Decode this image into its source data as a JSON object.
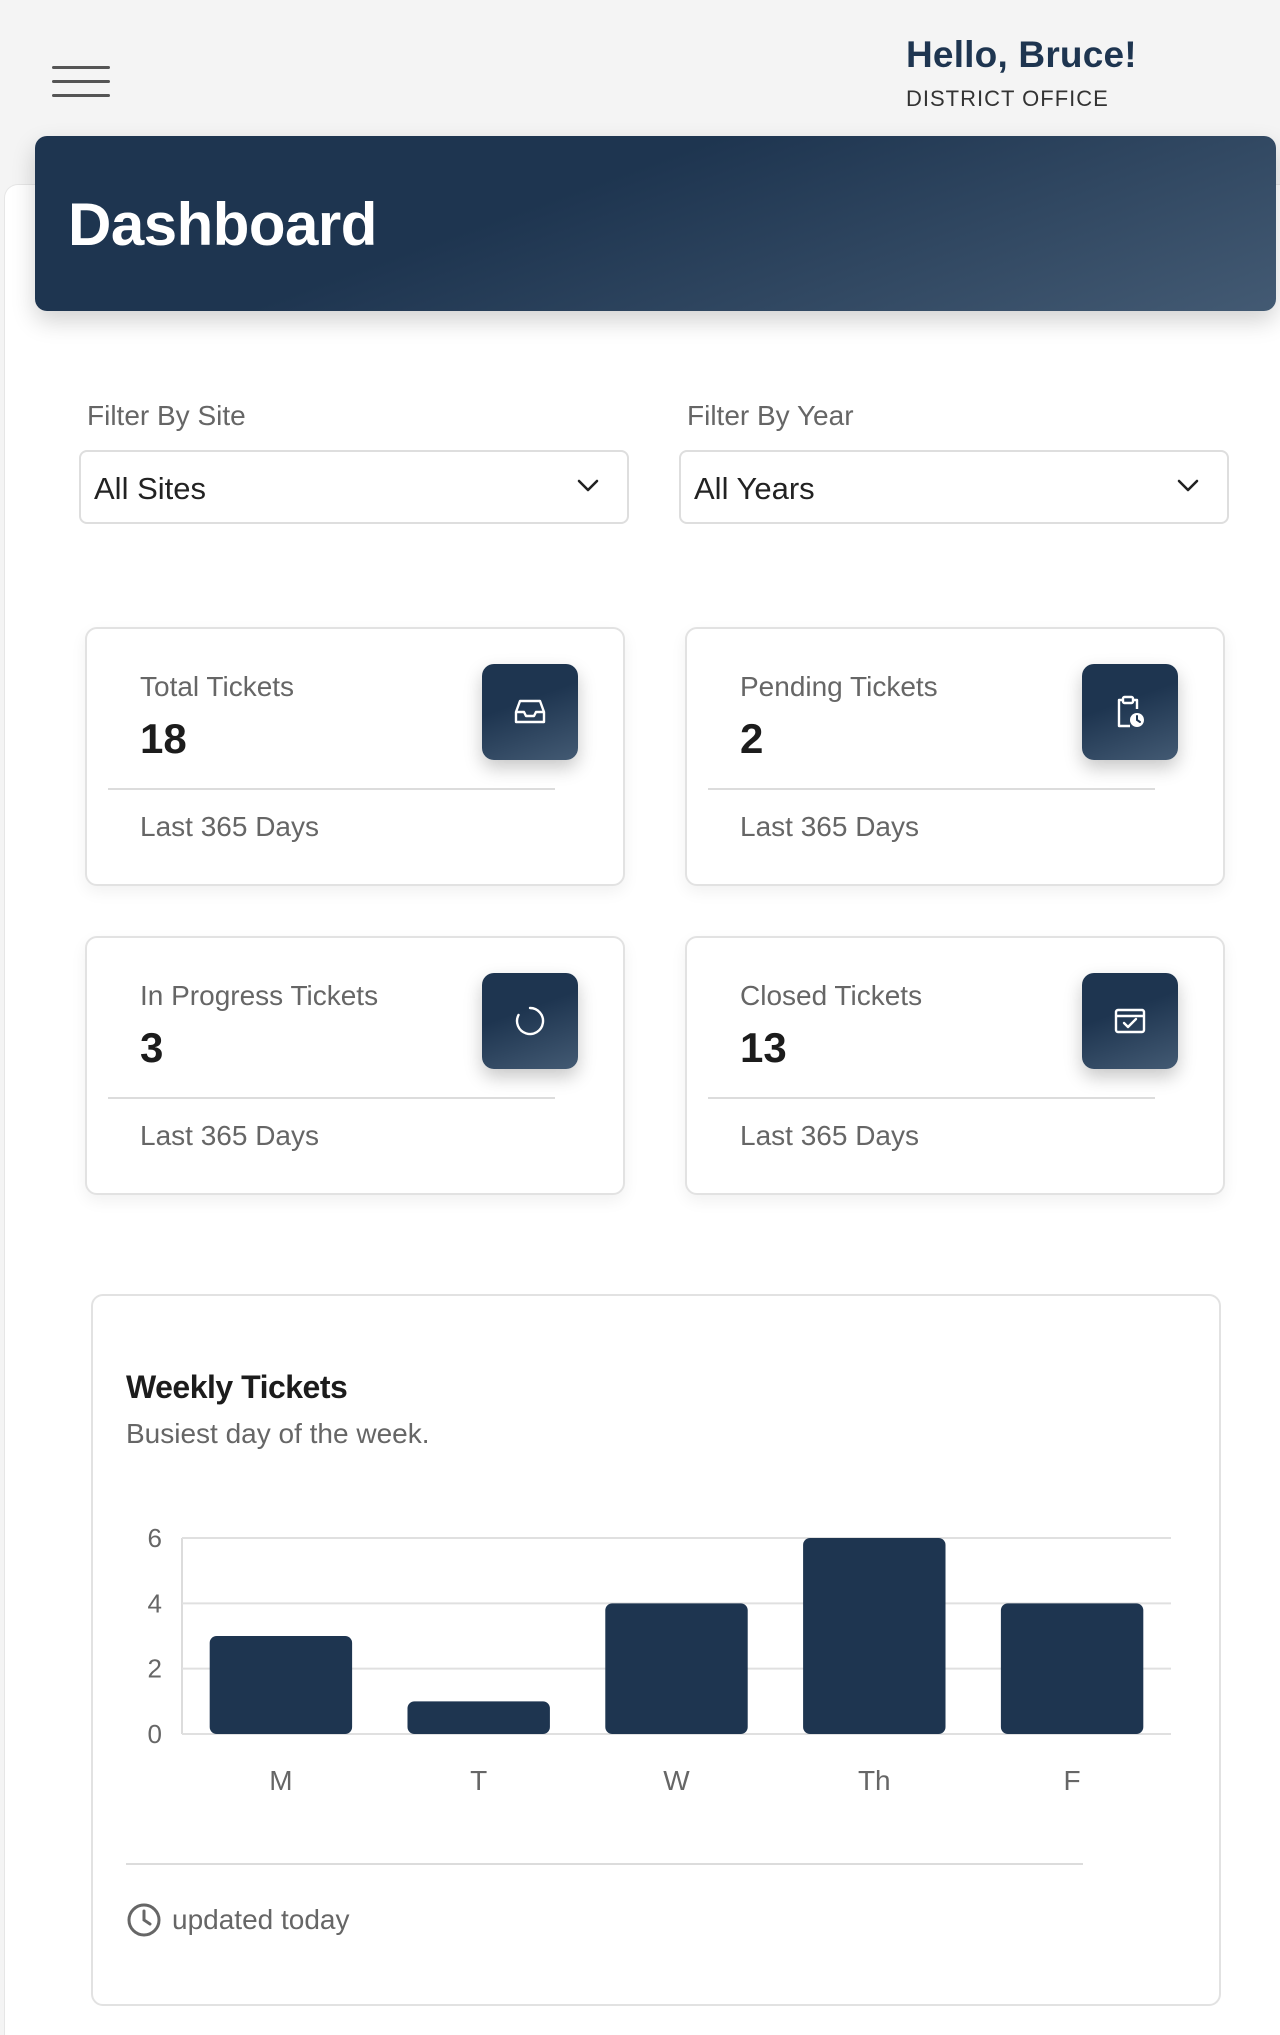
{
  "header": {
    "greeting": "Hello, Bruce!",
    "office": "DISTRICT OFFICE",
    "menu_icon": "hamburger-menu-icon"
  },
  "page": {
    "title": "Dashboard"
  },
  "filters": {
    "site": {
      "label": "Filter By Site",
      "value": "All Sites"
    },
    "year": {
      "label": "Filter By Year",
      "value": "All Years"
    }
  },
  "stats": [
    {
      "title": "Total Tickets",
      "value": "18",
      "footer": "Last 365 Days",
      "icon": "inbox-icon"
    },
    {
      "title": "Pending Tickets",
      "value": "2",
      "footer": "Last 365 Days",
      "icon": "clipboard-clock-icon"
    },
    {
      "title": "In Progress Tickets",
      "value": "3",
      "footer": "Last 365 Days",
      "icon": "spinner-icon"
    },
    {
      "title": "Closed Tickets",
      "value": "13",
      "footer": "Last 365 Days",
      "icon": "calendar-check-icon"
    }
  ],
  "weekly": {
    "title": "Weekly Tickets",
    "subtitle": "Busiest day of the week.",
    "updated": "updated today"
  },
  "colors": {
    "primary": "#1e3550",
    "accent_light": "#435a73"
  },
  "chart_data": {
    "type": "bar",
    "categories": [
      "M",
      "T",
      "W",
      "Th",
      "F"
    ],
    "values": [
      3,
      1,
      4,
      6,
      4
    ],
    "yticks": [
      0,
      2,
      4,
      6
    ],
    "ylim": [
      0,
      6
    ],
    "title": "Weekly Tickets",
    "subtitle": "Busiest day of the week.",
    "grid": true,
    "bar_color": "#1e3550"
  }
}
